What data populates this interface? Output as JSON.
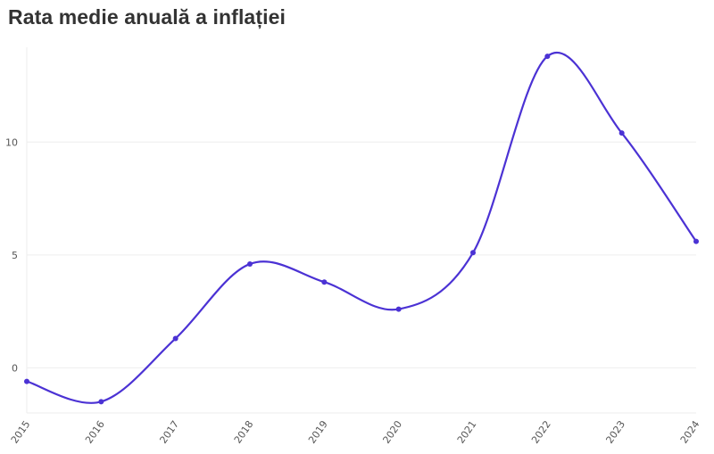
{
  "chart_data": {
    "type": "line",
    "title": "Rata medie anuală a inflației",
    "xlabel": "",
    "ylabel": "",
    "x": [
      "2015",
      "2016",
      "2017",
      "2018",
      "2019",
      "2020",
      "2021",
      "2022",
      "2023",
      "2024"
    ],
    "series": [
      {
        "name": "Rata medie anuală a inflației",
        "values": [
          -0.6,
          -1.5,
          1.3,
          4.6,
          3.8,
          2.6,
          5.1,
          13.8,
          10.4,
          5.6
        ]
      }
    ],
    "ylim": [
      -2,
      14.2
    ],
    "yticks": [
      0,
      5,
      10
    ],
    "grid": true,
    "legend": "none",
    "colors": {
      "line": "#4b32d4",
      "grid": "#eeeeee",
      "text": "#555555"
    }
  }
}
